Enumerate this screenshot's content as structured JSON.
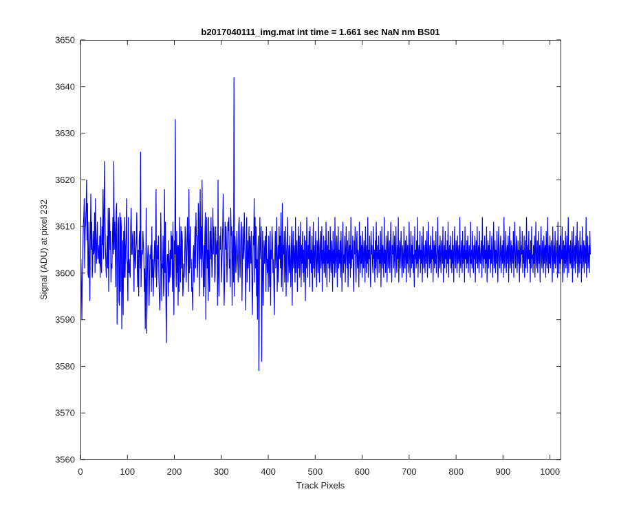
{
  "chart_data": {
    "type": "line",
    "title": "b2017040111_img.mat int time = 1.661 sec  NaN nm BS01",
    "xlabel": "Track Pixels",
    "ylabel": "Signal (ADU) at pixel 232",
    "xlim": [
      0,
      1024
    ],
    "ylim": [
      3560,
      3650
    ],
    "xticks": [
      0,
      100,
      200,
      300,
      400,
      500,
      600,
      700,
      800,
      900,
      1000
    ],
    "yticks": [
      3560,
      3570,
      3580,
      3590,
      3600,
      3610,
      3620,
      3630,
      3640,
      3650
    ],
    "grid": false,
    "series": [
      {
        "color": "#0000ff",
        "x_start": 1,
        "x_step": 1,
        "values": [
          3603,
          3598,
          3590,
          3600,
          3604,
          3610,
          3612,
          3616,
          3601,
          3609,
          3611,
          3614,
          3620,
          3607,
          3615,
          3600,
          3599,
          3611,
          3602,
          3594,
          3608,
          3617,
          3605,
          3611,
          3599,
          3602,
          3609,
          3604,
          3605,
          3613,
          3600,
          3616,
          3607,
          3602,
          3607,
          3611,
          3603,
          3606,
          3604,
          3602,
          3608,
          3599,
          3612,
          3602,
          3600,
          3610,
          3606,
          3618,
          3603,
          3610,
          3624,
          3613,
          3606,
          3602,
          3599,
          3604,
          3608,
          3601,
          3614,
          3596,
          3610,
          3614,
          3605,
          3609,
          3598,
          3602,
          3601,
          3607,
          3612,
          3604,
          3624,
          3605,
          3611,
          3608,
          3597,
          3613,
          3615,
          3589,
          3601,
          3610,
          3612,
          3594,
          3593,
          3613,
          3596,
          3612,
          3610,
          3588,
          3598,
          3607,
          3591,
          3609,
          3599,
          3612,
          3599,
          3605,
          3608,
          3616,
          3603,
          3602,
          3594,
          3612,
          3600,
          3603,
          3600,
          3599,
          3610,
          3614,
          3604,
          3604,
          3608,
          3609,
          3603,
          3596,
          3609,
          3604,
          3601,
          3605,
          3607,
          3613,
          3601,
          3597,
          3605,
          3595,
          3607,
          3609,
          3601,
          3626,
          3597,
          3602,
          3605,
          3604,
          3609,
          3606,
          3604,
          3596,
          3601,
          3588,
          3599,
          3614,
          3587,
          3595,
          3603,
          3606,
          3604,
          3593,
          3598,
          3604,
          3603,
          3606,
          3596,
          3610,
          3599,
          3603,
          3595,
          3600,
          3604,
          3607,
          3599,
          3605,
          3618,
          3597,
          3601,
          3606,
          3603,
          3608,
          3599,
          3595,
          3592,
          3597,
          3613,
          3605,
          3594,
          3602,
          3601,
          3608,
          3595,
          3598,
          3618,
          3600,
          3611,
          3594,
          3585,
          3601,
          3604,
          3604,
          3595,
          3607,
          3598,
          3601,
          3605,
          3599,
          3609,
          3603,
          3608,
          3596,
          3611,
          3600,
          3591,
          3607,
          3604,
          3633,
          3603,
          3597,
          3609,
          3600,
          3606,
          3593,
          3606,
          3596,
          3612,
          3603,
          3598,
          3610,
          3601,
          3609,
          3607,
          3595,
          3597,
          3602,
          3599,
          3604,
          3610,
          3606,
          3598,
          3602,
          3608,
          3612,
          3603,
          3596,
          3618,
          3600,
          3605,
          3610,
          3601,
          3603,
          3596,
          3597,
          3592,
          3604,
          3606,
          3598,
          3605,
          3610,
          3601,
          3613,
          3608,
          3608,
          3599,
          3603,
          3615,
          3612,
          3595,
          3605,
          3618,
          3603,
          3610,
          3599,
          3620,
          3605,
          3602,
          3595,
          3606,
          3597,
          3608,
          3613,
          3590,
          3608,
          3612,
          3601,
          3605,
          3594,
          3612,
          3600,
          3596,
          3609,
          3603,
          3612,
          3606,
          3599,
          3603,
          3614,
          3604,
          3610,
          3608,
          3598,
          3600,
          3610,
          3604,
          3605,
          3607,
          3593,
          3620,
          3600,
          3595,
          3603,
          3608,
          3605,
          3610,
          3598,
          3602,
          3605,
          3610,
          3617,
          3601,
          3593,
          3598,
          3611,
          3605,
          3610,
          3606,
          3598,
          3604,
          3611,
          3609,
          3612,
          3601,
          3603,
          3597,
          3614,
          3608,
          3610,
          3593,
          3604,
          3609,
          3598,
          3642,
          3595,
          3608,
          3606,
          3600,
          3602,
          3609,
          3605,
          3603,
          3598,
          3610,
          3612,
          3604,
          3599,
          3605,
          3609,
          3611,
          3594,
          3602,
          3610,
          3603,
          3605,
          3613,
          3607,
          3601,
          3592,
          3604,
          3612,
          3598,
          3607,
          3601,
          3603,
          3610,
          3596,
          3608,
          3605,
          3602,
          3609,
          3600,
          3591,
          3598,
          3608,
          3606,
          3616,
          3598,
          3612,
          3601,
          3610,
          3595,
          3603,
          3590,
          3605,
          3608,
          3579,
          3597,
          3612,
          3606,
          3603,
          3610,
          3581,
          3601,
          3609,
          3593,
          3599,
          3607,
          3602,
          3605,
          3608,
          3596,
          3610,
          3604,
          3600,
          3603,
          3596,
          3608,
          3602,
          3597,
          3609,
          3593,
          3605,
          3603,
          3610,
          3607,
          3600,
          3603,
          3597,
          3591,
          3604,
          3609,
          3601,
          3605,
          3612,
          3596,
          3602,
          3606,
          3598,
          3610,
          3603,
          3608,
          3601,
          3613,
          3597,
          3602,
          3615,
          3596,
          3606,
          3604,
          3609,
          3598,
          3601,
          3610,
          3595,
          3604,
          3607,
          3612,
          3598,
          3603,
          3606,
          3600,
          3608,
          3602,
          3597,
          3605,
          3610,
          3593,
          3604,
          3609,
          3601,
          3606,
          3603,
          3598,
          3612,
          3600,
          3605,
          3607,
          3596,
          3603,
          3610,
          3601,
          3608,
          3599,
          3604,
          3611,
          3597,
          3606,
          3602,
          3609,
          3600,
          3605,
          3598,
          3608,
          3603,
          3594,
          3607,
          3601,
          3612,
          3604,
          3599,
          3606,
          3603,
          3609,
          3597,
          3610,
          3602,
          3605,
          3600,
          3608,
          3596,
          3603,
          3611,
          3601,
          3606,
          3599,
          3604,
          3609,
          3602,
          3597,
          3607,
          3605,
          3600,
          3612,
          3603,
          3598,
          3606,
          3609,
          3601,
          3604,
          3610,
          3596,
          3605,
          3602,
          3608,
          3600,
          3603,
          3607,
          3599,
          3611,
          3604,
          3597,
          3606,
          3602,
          3609,
          3601,
          3605,
          3598,
          3610,
          3603,
          3600,
          3607,
          3604,
          3596,
          3609,
          3602,
          3605,
          3599,
          3612,
          3603,
          3600,
          3606,
          3608,
          3597,
          3604,
          3610,
          3601,
          3605,
          3602,
          3607,
          3599,
          3609,
          3603,
          3596,
          3606,
          3611,
          3600,
          3604,
          3602,
          3608,
          3598,
          3605,
          3610,
          3603,
          3601,
          3607,
          3597,
          3604,
          3609,
          3602,
          3606,
          3599,
          3612,
          3601,
          3605,
          3603,
          3608,
          3600,
          3596,
          3607,
          3604,
          3610,
          3602,
          3598,
          3606,
          3609,
          3601,
          3605,
          3603,
          3597,
          3611,
          3604,
          3600,
          3608,
          3602,
          3606,
          3599,
          3609,
          3603,
          3601,
          3607,
          3605,
          3598,
          3610,
          3604,
          3600,
          3606,
          3602,
          3612,
          3599,
          3605,
          3603,
          3608,
          3601,
          3597,
          3609,
          3604,
          3606,
          3602,
          3600,
          3610,
          3603,
          3605,
          3598,
          3607,
          3601,
          3611,
          3604,
          3599,
          3606,
          3603,
          3608,
          3600,
          3605,
          3602,
          3609,
          3597,
          3604,
          3610,
          3601,
          3606,
          3603,
          3599,
          3612,
          3602,
          3605,
          3600,
          3608,
          3604,
          3598,
          3606,
          3609,
          3601,
          3603,
          3607,
          3600,
          3605,
          3611,
          3602,
          3598,
          3606,
          3604,
          3609,
          3601,
          3603,
          3608,
          3599,
          3605,
          3610,
          3602,
          3600,
          3606,
          3603,
          3612,
          3598,
          3604,
          3607,
          3601,
          3605,
          3609,
          3602,
          3599,
          3606,
          3603,
          3600,
          3610,
          3604,
          3601,
          3607,
          3605,
          3598,
          3608,
          3602,
          3606,
          3600,
          3603,
          3611,
          3604,
          3599,
          3605,
          3609,
          3601,
          3606,
          3602,
          3608,
          3600,
          3604,
          3597,
          3610,
          3603,
          3605,
          3601,
          3607,
          3602,
          3612,
          3599,
          3604,
          3606,
          3603,
          3609,
          3600,
          3605,
          3602,
          3608,
          3598,
          3604,
          3610,
          3601,
          3606,
          3603,
          3600,
          3607,
          3605,
          3602,
          3609,
          3599,
          3603,
          3611,
          3604,
          3601,
          3606,
          3602,
          3608,
          3600,
          3605,
          3603,
          3610,
          3598,
          3604,
          3607,
          3601,
          3606,
          3602,
          3609,
          3600,
          3603,
          3605,
          3612,
          3599,
          3604,
          3606,
          3601,
          3608,
          3603,
          3600,
          3607,
          3605,
          3602,
          3610,
          3598,
          3604,
          3606,
          3601,
          3609,
          3603,
          3605,
          3600,
          3607,
          3602,
          3611,
          3599,
          3604,
          3606,
          3603,
          3608,
          3601,
          3605,
          3600,
          3609,
          3602,
          3606,
          3598,
          3604,
          3610,
          3603,
          3601,
          3607,
          3605,
          3600,
          3608,
          3602,
          3604,
          3606,
          3599,
          3612,
          3603,
          3601,
          3605,
          3607,
          3600,
          3609,
          3602,
          3604,
          3606,
          3598,
          3610,
          3603,
          3605,
          3601,
          3607,
          3602,
          3608,
          3600,
          3604,
          3606,
          3603,
          3599,
          3611,
          3602,
          3605,
          3601,
          3609,
          3604,
          3600,
          3606,
          3603,
          3608,
          3598,
          3605,
          3607,
          3602,
          3610,
          3601,
          3604,
          3606,
          3600,
          3609,
          3603,
          3602,
          3605,
          3607,
          3599,
          3612,
          3604,
          3601,
          3606,
          3603,
          3608,
          3600,
          3605,
          3602,
          3610,
          3598,
          3604,
          3607,
          3601,
          3606,
          3603,
          3609,
          3600,
          3605,
          3602,
          3608,
          3604,
          3599,
          3606,
          3611,
          3601,
          3603,
          3607,
          3600,
          3605,
          3602,
          3609,
          3604,
          3598,
          3606,
          3610,
          3603,
          3601,
          3605,
          3608,
          3600,
          3604,
          3606,
          3602,
          3607,
          3599,
          3612,
          3603,
          3601,
          3605,
          3609,
          3600,
          3604,
          3606,
          3602,
          3608,
          3598,
          3605,
          3610,
          3601,
          3603,
          3607,
          3600,
          3606,
          3604,
          3602,
          3609,
          3599,
          3605,
          3611,
          3603,
          3601,
          3606,
          3608,
          3600,
          3604,
          3607,
          3602,
          3605,
          3598,
          3610,
          3603,
          3601,
          3606,
          3604,
          3609,
          3600,
          3605,
          3602,
          3608,
          3599,
          3603,
          3607,
          3601,
          3612,
          3604,
          3600,
          3606,
          3603,
          3609,
          3602,
          3605,
          3598,
          3607,
          3601,
          3610,
          3603,
          3604,
          3600,
          3606,
          3602,
          3608,
          3599,
          3605,
          3611,
          3601,
          3603,
          3607,
          3600,
          3604,
          3609,
          3602,
          3606,
          3598,
          3605,
          3610,
          3603,
          3601,
          3607,
          3604,
          3600,
          3608,
          3602,
          3605,
          3606,
          3599,
          3609,
          3603,
          3601,
          3612,
          3604,
          3600,
          3606,
          3602,
          3608,
          3601,
          3605,
          3607,
          3603,
          3598,
          3610,
          3604,
          3600,
          3606,
          3602,
          3609,
          3601,
          3603,
          3605,
          3607,
          3599,
          3611,
          3604,
          3600,
          3606,
          3602,
          3608,
          3601,
          3605,
          3603,
          3610,
          3598,
          3604,
          3607,
          3600,
          3606,
          3602,
          3609,
          3601,
          3603,
          3608,
          3599,
          3605,
          3612,
          3600,
          3604,
          3606,
          3602,
          3607,
          3601,
          3603,
          3609,
          3598,
          3605,
          3610,
          3601,
          3604,
          3606,
          3600,
          3608,
          3602,
          3605,
          3611,
          3599,
          3603,
          3607,
          3600,
          3604,
          3609,
          3602,
          3606,
          3598,
          3605,
          3610,
          3601,
          3603,
          3607,
          3600,
          3606,
          3604,
          3602,
          3612,
          3599,
          3605,
          3608,
          3601,
          3603,
          3606,
          3600,
          3609,
          3604
        ]
      }
    ]
  }
}
